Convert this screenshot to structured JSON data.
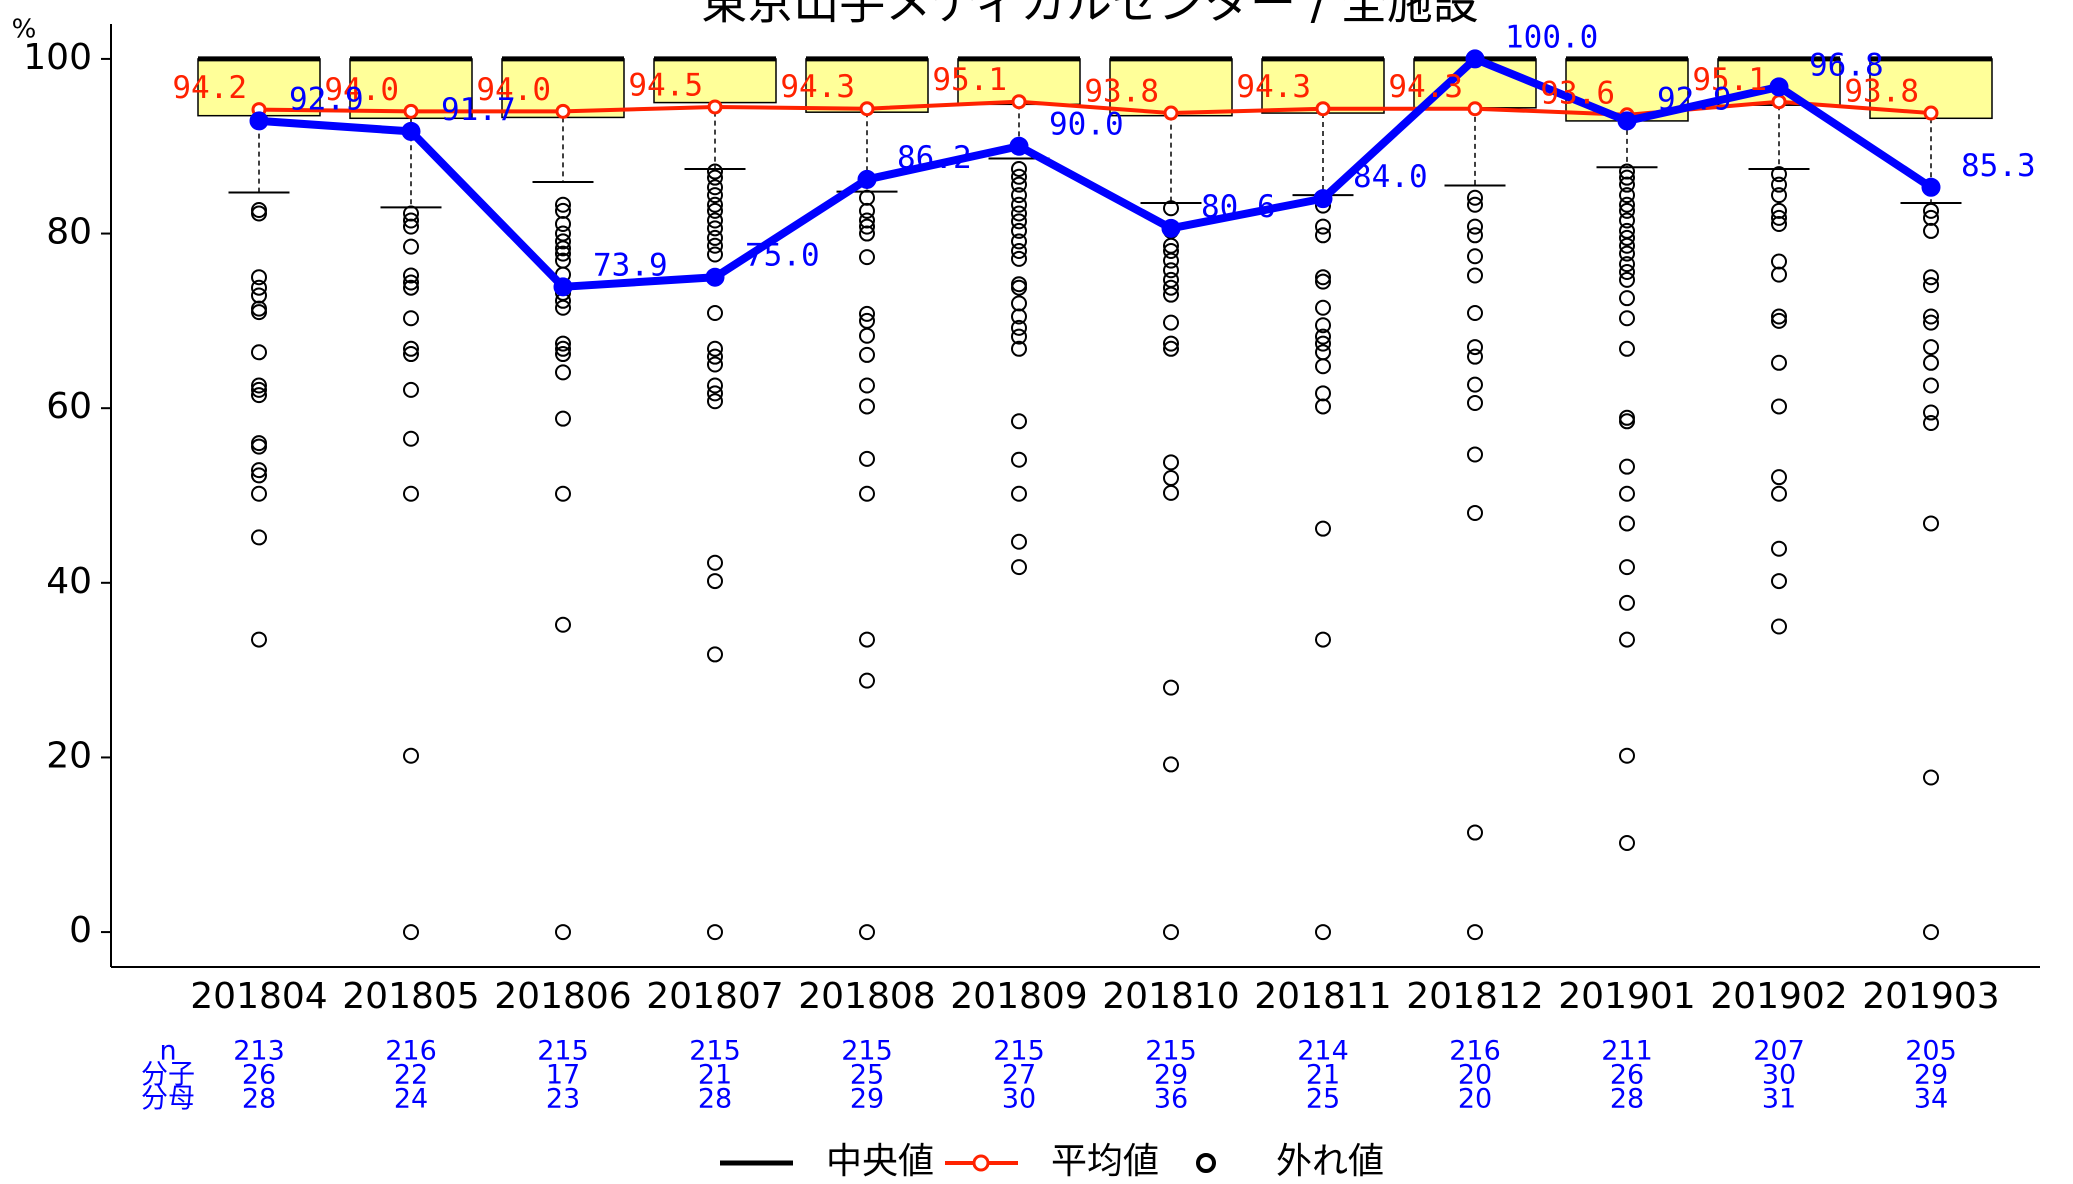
{
  "chart_data": {
    "type": "boxplot",
    "title": "東京山手メディカルセンター / 全施設",
    "y_axis_label": "%",
    "categories": [
      "201804",
      "201805",
      "201806",
      "201807",
      "201808",
      "201809",
      "201810",
      "201811",
      "201812",
      "201901",
      "201902",
      "201903"
    ],
    "ylim": [
      -4,
      104
    ],
    "yticks": [
      0,
      20,
      40,
      60,
      80,
      100
    ],
    "boxes": {
      "name": "中央値",
      "color": "#ffff99",
      "median": [
        100,
        100,
        100,
        100,
        100,
        100,
        100,
        100,
        100,
        100,
        100,
        100
      ],
      "q3": [
        100,
        100,
        100,
        100,
        100,
        100,
        100,
        100,
        100,
        100,
        100,
        100
      ],
      "q1": [
        93.5,
        93.2,
        93.3,
        95.0,
        93.9,
        94.8,
        93.5,
        93.8,
        94.4,
        92.9,
        94.7,
        93.2
      ],
      "whisker_low": [
        84.7,
        83.0,
        85.9,
        87.4,
        84.8,
        88.6,
        83.5,
        84.4,
        85.5,
        87.6,
        87.4,
        83.5
      ]
    },
    "outliers": {
      "name": "外れ値",
      "values": [
        [
          82.7,
          82.3,
          75,
          73.8,
          72.9,
          71.4,
          71,
          66.4,
          62.6,
          62.1,
          61.5,
          56,
          55.6,
          52.9,
          52.3,
          50.2,
          45.2,
          33.5
        ],
        [
          82.3,
          81.5,
          80.8,
          78.5,
          75.2,
          74.4,
          73.8,
          70.3,
          66.8,
          66.2,
          62.1,
          56.5,
          50.2,
          20.2,
          0
        ],
        [
          83.3,
          82.6,
          81.1,
          80,
          79.1,
          78.3,
          77.7,
          76.9,
          75.3,
          73.2,
          72.3,
          71.5,
          67.4,
          66.8,
          66.2,
          64.1,
          58.8,
          50.2,
          35.2,
          0
        ],
        [
          87.1,
          86.4,
          85.3,
          84.4,
          83.3,
          82.6,
          81.5,
          80.6,
          79.5,
          78.6,
          77.6,
          70.9,
          66.8,
          65.9,
          65,
          62.6,
          61.7,
          60.8,
          42.3,
          40.2,
          31.8,
          0
        ],
        [
          84.1,
          82.6,
          81.5,
          80.8,
          80,
          77.3,
          70.8,
          70,
          68.3,
          66.1,
          62.6,
          60.2,
          54.2,
          50.2,
          33.5,
          28.8,
          0
        ],
        [
          87.4,
          86.5,
          85.6,
          84.4,
          83.3,
          82.3,
          81.4,
          80.3,
          79.1,
          78,
          77.1,
          74.2,
          73.8,
          72,
          70.5,
          69.2,
          68.2,
          66.8,
          58.5,
          54.1,
          50.2,
          44.7,
          41.8
        ],
        [
          82.9,
          80.3,
          78.6,
          78,
          76.9,
          75.8,
          74.7,
          73.8,
          73,
          69.8,
          67.4,
          66.8,
          53.8,
          52,
          50.3,
          28,
          19.2,
          0
        ],
        [
          84.1,
          83.2,
          80.8,
          79.8,
          75,
          74.5,
          71.5,
          69.5,
          68.2,
          67.4,
          66.4,
          64.8,
          61.7,
          60.2,
          46.2,
          33.5,
          0
        ],
        [
          84.1,
          83.3,
          80.8,
          79.8,
          77.4,
          75.2,
          70.9,
          67,
          65.9,
          62.7,
          60.6,
          54.7,
          48,
          11.4,
          0
        ],
        [
          87.1,
          86.4,
          85.6,
          84.4,
          83.3,
          82.6,
          81.5,
          80.3,
          79.5,
          78.6,
          77.7,
          76.5,
          75.6,
          74.7,
          72.6,
          70.3,
          66.8,
          58.9,
          58.5,
          53.3,
          50.2,
          46.8,
          41.8,
          37.7,
          33.5,
          20.2,
          10.2
        ],
        [
          86.8,
          85.6,
          84.4,
          82.6,
          81.8,
          81.1,
          76.8,
          75.3,
          70.5,
          70,
          65.2,
          60.2,
          52.1,
          50.2,
          43.9,
          40.2,
          35
        ],
        [
          82.6,
          81.8,
          80.3,
          75,
          74.1,
          70.5,
          69.8,
          67,
          65.2,
          62.6,
          59.5,
          58.3,
          46.8,
          17.7,
          0
        ]
      ]
    },
    "series": [
      {
        "color": "#0000ff",
        "values": [
          92.9,
          91.7,
          73.9,
          75.0,
          86.2,
          90.0,
          80.6,
          84.0,
          100.0,
          92.9,
          96.8,
          85.3
        ],
        "value_labels": [
          "92.9",
          "91.7",
          "73.9",
          "75.0",
          "86.2",
          "90.0",
          "80.6",
          "84.0",
          "100.0",
          "92.9",
          "96.8",
          "85.3"
        ]
      },
      {
        "name": "平均値",
        "color": "#ff2200",
        "values": [
          94.2,
          94.0,
          94.0,
          94.5,
          94.3,
          95.1,
          93.8,
          94.3,
          94.3,
          93.6,
          95.1,
          93.8
        ],
        "value_labels": [
          "94.2",
          "94.0",
          "94.0",
          "94.5",
          "94.3",
          "95.1",
          "93.8",
          "94.3",
          "94.3",
          "93.6",
          "95.1",
          "93.8"
        ]
      }
    ],
    "table": {
      "row_labels": [
        "n",
        "分子",
        "分母"
      ],
      "rows": [
        [
          213,
          216,
          215,
          215,
          215,
          215,
          215,
          214,
          216,
          211,
          207,
          205
        ],
        [
          26,
          22,
          17,
          21,
          25,
          27,
          29,
          21,
          20,
          26,
          30,
          29
        ],
        [
          28,
          24,
          23,
          28,
          29,
          30,
          36,
          25,
          20,
          28,
          31,
          34
        ]
      ]
    }
  }
}
